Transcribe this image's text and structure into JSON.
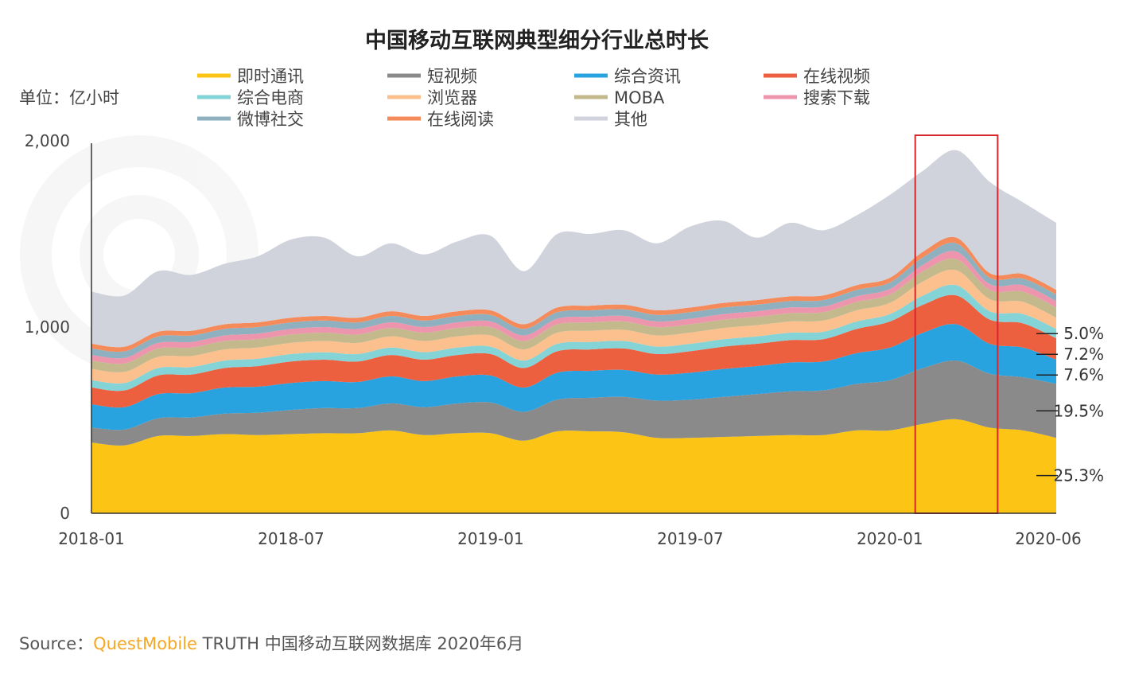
{
  "chart_data": {
    "type": "area",
    "stacked": true,
    "title": "中国移动互联网典型细分行业总时长",
    "unit_label": "单位：亿小时",
    "x": [
      "2018-01",
      "2018-02",
      "2018-03",
      "2018-04",
      "2018-05",
      "2018-06",
      "2018-07",
      "2018-08",
      "2018-09",
      "2018-10",
      "2018-11",
      "2018-12",
      "2019-01",
      "2019-02",
      "2019-03",
      "2019-04",
      "2019-05",
      "2019-06",
      "2019-07",
      "2019-08",
      "2019-09",
      "2019-10",
      "2019-11",
      "2019-12",
      "2020-01",
      "2020-02",
      "2020-03",
      "2020-04",
      "2020-05",
      "2020-06"
    ],
    "x_tick_labels": [
      "2018-01",
      "2018-07",
      "2019-01",
      "2019-07",
      "2020-01",
      "2020-06"
    ],
    "y_tick_labels": [
      "0",
      "1,000",
      "2,000"
    ],
    "ylim": [
      0,
      2000
    ],
    "grid": false,
    "legend_position": "top",
    "series": [
      {
        "name": "即时通讯",
        "color": "#fcc515",
        "values": [
          380,
          365,
          415,
          415,
          425,
          420,
          425,
          430,
          430,
          445,
          420,
          430,
          430,
          390,
          440,
          440,
          435,
          405,
          405,
          410,
          415,
          420,
          420,
          445,
          445,
          480,
          505,
          460,
          445,
          405
        ]
      },
      {
        "name": "短视频",
        "color": "#8a8a8a",
        "values": [
          80,
          85,
          95,
          100,
          110,
          120,
          130,
          135,
          135,
          145,
          150,
          160,
          165,
          155,
          170,
          180,
          190,
          200,
          205,
          215,
          225,
          235,
          240,
          250,
          270,
          300,
          315,
          290,
          285,
          290
        ]
      },
      {
        "name": "综合资讯",
        "color": "#28a3e0",
        "values": [
          125,
          120,
          130,
          130,
          140,
          140,
          145,
          145,
          140,
          145,
          140,
          145,
          145,
          130,
          145,
          145,
          145,
          140,
          145,
          150,
          150,
          155,
          155,
          165,
          175,
          190,
          195,
          160,
          160,
          130
        ]
      },
      {
        "name": "在线视频",
        "color": "#ec5f3f",
        "values": [
          90,
          90,
          100,
          100,
          105,
          110,
          115,
          115,
          110,
          115,
          115,
          115,
          115,
          105,
          115,
          115,
          115,
          110,
          115,
          120,
          120,
          120,
          120,
          130,
          140,
          150,
          155,
          130,
          130,
          115
        ]
      },
      {
        "name": "综合电商",
        "color": "#84d3d6",
        "values": [
          40,
          40,
          40,
          40,
          40,
          40,
          40,
          40,
          40,
          40,
          40,
          40,
          40,
          40,
          40,
          40,
          40,
          40,
          40,
          40,
          40,
          40,
          40,
          40,
          40,
          50,
          55,
          45,
          50,
          50
        ]
      },
      {
        "name": "浏览器",
        "color": "#fbc08e",
        "values": [
          60,
          60,
          60,
          60,
          60,
          60,
          60,
          60,
          60,
          60,
          60,
          60,
          60,
          60,
          60,
          60,
          60,
          60,
          60,
          60,
          60,
          60,
          60,
          60,
          60,
          75,
          80,
          65,
          65,
          60
        ]
      },
      {
        "name": "MOBA",
        "color": "#c3b98c",
        "values": [
          45,
          45,
          45,
          45,
          45,
          45,
          45,
          45,
          45,
          45,
          45,
          45,
          45,
          45,
          45,
          45,
          45,
          45,
          45,
          45,
          45,
          45,
          45,
          45,
          45,
          55,
          60,
          50,
          55,
          55
        ]
      },
      {
        "name": "搜索下载",
        "color": "#ec95ad",
        "values": [
          30,
          30,
          30,
          30,
          30,
          30,
          30,
          30,
          30,
          30,
          30,
          30,
          30,
          30,
          30,
          30,
          30,
          30,
          30,
          30,
          30,
          30,
          30,
          30,
          30,
          35,
          40,
          30,
          35,
          35
        ]
      },
      {
        "name": "微博社交",
        "color": "#8fb0be",
        "values": [
          35,
          35,
          35,
          35,
          35,
          35,
          35,
          35,
          35,
          35,
          35,
          35,
          35,
          35,
          35,
          35,
          35,
          35,
          35,
          35,
          35,
          35,
          35,
          35,
          35,
          40,
          45,
          35,
          35,
          35
        ]
      },
      {
        "name": "在线阅读",
        "color": "#f58b5b",
        "values": [
          25,
          25,
          25,
          25,
          25,
          25,
          25,
          25,
          25,
          25,
          25,
          25,
          25,
          25,
          25,
          25,
          25,
          25,
          25,
          25,
          25,
          25,
          25,
          25,
          25,
          30,
          30,
          25,
          25,
          25
        ]
      },
      {
        "name": "其他",
        "color": "#d0d2dc",
        "values": [
          280,
          275,
          325,
          300,
          325,
          355,
          420,
          420,
          330,
          365,
          330,
          375,
          400,
          285,
          395,
          385,
          400,
          360,
          435,
          440,
          335,
          395,
          350,
          375,
          445,
          435,
          470,
          490,
          385,
          360
        ]
      }
    ],
    "annotations": [
      {
        "text": "5.0%",
        "series": "综合电商"
      },
      {
        "text": "7.2%",
        "series": "在线视频"
      },
      {
        "text": "7.6%",
        "series": "综合资讯"
      },
      {
        "text": "19.5%",
        "series": "短视频"
      },
      {
        "text": "25.3%",
        "series": "即时通讯"
      }
    ],
    "highlight": {
      "from": "2020-02",
      "to": "2020-04",
      "color": "#d9262b"
    }
  },
  "source": {
    "prefix": "Source：",
    "brand": "QuestMobile",
    "suffix": " TRUTH 中国移动互联网数据库 2020年6月"
  }
}
